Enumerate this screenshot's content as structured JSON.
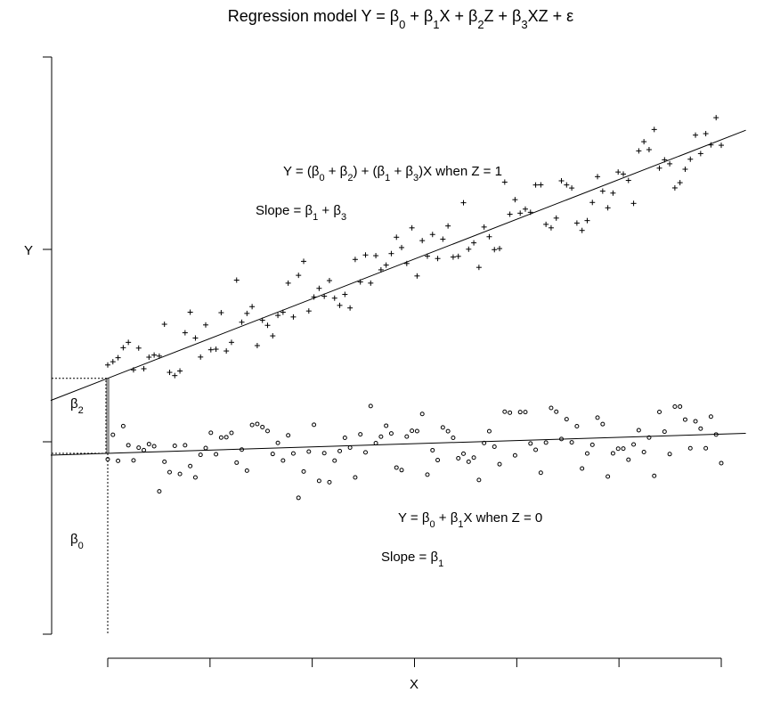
{
  "chart_data": {
    "type": "scatter",
    "title": {
      "prefix": "Regression model Y = β",
      "parts": [
        {
          "t": "Regression model Y = β"
        },
        {
          "sub": "0"
        },
        {
          "t": " + β"
        },
        {
          "sub": "1"
        },
        {
          "t": "X + β"
        },
        {
          "sub": "2"
        },
        {
          "t": "Z + β"
        },
        {
          "sub": "3"
        },
        {
          "t": "XZ + ε"
        }
      ]
    },
    "xlabel": "X",
    "ylabel": "Y",
    "xlim": [
      0,
      1
    ],
    "ylim": [
      -1.0,
      2.0
    ],
    "x_ticks": [
      0,
      0.1667,
      0.3333,
      0.5,
      0.6667,
      0.8333,
      1.0
    ],
    "y_ticks": [
      -1.0,
      0.0,
      1.0,
      2.0
    ],
    "series": [
      {
        "group": "Z = 0",
        "marker": "circle",
        "intercept": -0.06,
        "slope": 0.1,
        "residual_sd": 0.1,
        "n": 120
      },
      {
        "group": "Z = 1",
        "marker": "plus",
        "intercept": 0.33,
        "slope": 1.24,
        "residual_sd": 0.1,
        "n": 120
      }
    ],
    "annotations": {
      "z1_equation": [
        {
          "t": "Y = (β"
        },
        {
          "sub": "0"
        },
        {
          "t": " + β"
        },
        {
          "sub": "2"
        },
        {
          "t": ") + (β"
        },
        {
          "sub": "1"
        },
        {
          "t": " + β"
        },
        {
          "sub": "3"
        },
        {
          "t": ")X when Z = 1"
        }
      ],
      "z1_slope": [
        {
          "t": "Slope = β"
        },
        {
          "sub": "1"
        },
        {
          "t": " + β"
        },
        {
          "sub": "3"
        }
      ],
      "z0_equation": [
        {
          "t": "Y = β"
        },
        {
          "sub": "0"
        },
        {
          "t": " + β"
        },
        {
          "sub": "1"
        },
        {
          "t": "X when Z = 0"
        }
      ],
      "z0_slope": [
        {
          "t": "Slope = β"
        },
        {
          "sub": "1"
        }
      ],
      "beta2_label": [
        {
          "t": "β"
        },
        {
          "sub": "2"
        }
      ],
      "beta0_label": [
        {
          "t": "β"
        },
        {
          "sub": "0"
        }
      ]
    },
    "grid": false,
    "legend": "none"
  }
}
